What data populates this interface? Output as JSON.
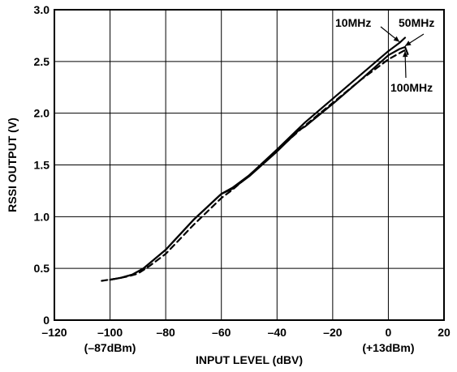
{
  "chart_data": {
    "type": "line",
    "xlabel": "INPUT LEVEL (dBV)",
    "ylabel": "RSSI OUTPUT  (V)",
    "xlim": [
      -120,
      20
    ],
    "ylim": [
      0,
      3.0
    ],
    "xticks": [
      -120,
      -100,
      -80,
      -60,
      -40,
      -20,
      0,
      20
    ],
    "xtick_labels": [
      "–120",
      "–100",
      "–80",
      "–60",
      "–40",
      "–20",
      "0",
      "20"
    ],
    "yticks": [
      0,
      0.5,
      1.0,
      1.5,
      2.0,
      2.5,
      3.0
    ],
    "ytick_labels": [
      "0",
      "0.5",
      "1.0",
      "1.5",
      "2.0",
      "2.5",
      "3.0"
    ],
    "grid": true,
    "sublabels": [
      {
        "x": -100,
        "text": "(–87dBm)"
      },
      {
        "x": 0,
        "text": "(+13dBm)"
      }
    ],
    "series": [
      {
        "name": "10MHz",
        "style": "solid",
        "x": [
          -100,
          -96,
          -92,
          -88,
          -80,
          -70,
          -60,
          -56,
          -50,
          -40,
          -30,
          -20,
          -10,
          0,
          4,
          6
        ],
        "y": [
          0.39,
          0.41,
          0.44,
          0.5,
          0.68,
          0.97,
          1.22,
          1.28,
          1.4,
          1.65,
          1.91,
          2.14,
          2.37,
          2.6,
          2.68,
          2.73
        ]
      },
      {
        "name": "50MHz",
        "style": "solid",
        "x": [
          -100,
          -96,
          -92,
          -88,
          -80,
          -70,
          -60,
          -56,
          -50,
          -40,
          -32,
          -30,
          -20,
          -10,
          0,
          4,
          6,
          7
        ],
        "y": [
          0.39,
          0.41,
          0.44,
          0.5,
          0.68,
          0.97,
          1.22,
          1.27,
          1.39,
          1.63,
          1.84,
          1.87,
          2.09,
          2.32,
          2.56,
          2.62,
          2.64,
          2.57
        ]
      },
      {
        "name": "100MHz",
        "style": "dashed",
        "x": [
          -103,
          -98,
          -94,
          -90,
          -86,
          -80,
          -70,
          -60,
          -56,
          -50,
          -40,
          -30,
          -20,
          -10,
          0,
          4,
          6,
          7
        ],
        "y": [
          0.38,
          0.4,
          0.42,
          0.45,
          0.52,
          0.64,
          0.92,
          1.18,
          1.26,
          1.4,
          1.64,
          1.88,
          2.1,
          2.32,
          2.52,
          2.58,
          2.61,
          2.62
        ]
      }
    ],
    "annotations": [
      {
        "text": "10MHz",
        "point_x": 4,
        "point_y": 2.69
      },
      {
        "text": "50MHz",
        "point_x": 6,
        "point_y": 2.65
      },
      {
        "text": "100MHz",
        "point_x": 6,
        "point_y": 2.6
      }
    ]
  }
}
